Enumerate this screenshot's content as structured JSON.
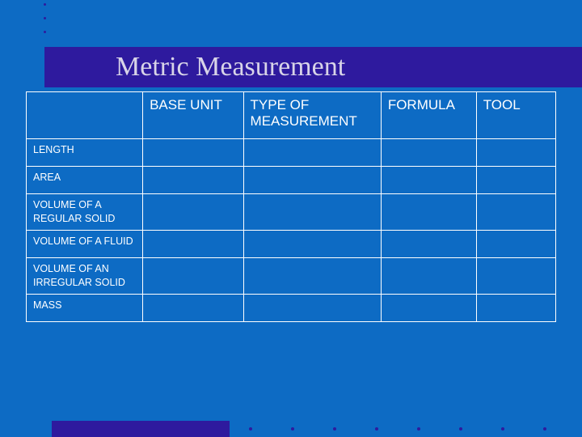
{
  "title": "Metric Measurement",
  "colors": {
    "background": "#0d6bc4",
    "accent": "#2e1a9e",
    "title_text": "#d8d4e8",
    "table_border": "#ffffff",
    "table_text": "#ffffff"
  },
  "table": {
    "columns": [
      "",
      "BASE UNIT",
      "TYPE OF MEASUREMENT",
      "FORMULA",
      "TOOL"
    ],
    "column_widths_pct": [
      22,
      19,
      26,
      18,
      15
    ],
    "header_fontsize": 17,
    "rowlabel_fontsize": 12.5,
    "rows": [
      {
        "label": "LENGTH",
        "cells": [
          "",
          "",
          "",
          ""
        ]
      },
      {
        "label": "AREA",
        "cells": [
          "",
          "",
          "",
          ""
        ]
      },
      {
        "label": "VOLUME OF A REGULAR SOLID",
        "cells": [
          "",
          "",
          "",
          ""
        ]
      },
      {
        "label": "VOLUME OF A FLUID",
        "cells": [
          "",
          "",
          "",
          ""
        ]
      },
      {
        "label": "VOLUME OF AN IRREGULAR SOLID",
        "cells": [
          "",
          "",
          "",
          ""
        ]
      },
      {
        "label": "MASS",
        "cells": [
          "",
          "",
          "",
          ""
        ]
      }
    ]
  },
  "decoration": {
    "top_bullet_count": 3,
    "footer_dot_count": 8
  }
}
